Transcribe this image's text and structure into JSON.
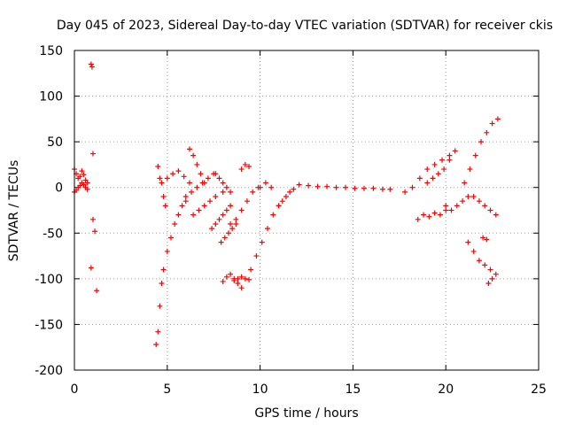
{
  "chart_data": {
    "type": "scatter",
    "title": "Day 045 of 2023, Sidereal Day-to-day VTEC variation (SDTVAR) for receiver ckis",
    "xlabel": "GPS time / hours",
    "ylabel": "SDTVAR / TECUs",
    "xlim": [
      0,
      25
    ],
    "ylim": [
      -200,
      150
    ],
    "xticks": [
      "0",
      "5",
      "10",
      "15",
      "20",
      "25"
    ],
    "yticks": [
      "150",
      "100",
      "50",
      "0",
      "-50",
      "-100",
      "-150",
      "-200"
    ],
    "grid": true,
    "marker": "+",
    "color": "#ff0000",
    "segments": [
      {
        "x": [
          0.0,
          0.1,
          0.2,
          0.3,
          0.4,
          0.5,
          0.6,
          0.7
        ],
        "y": [
          20,
          15,
          10,
          12,
          18,
          14,
          8,
          5
        ]
      },
      {
        "x": [
          0.0,
          0.1,
          0.2,
          0.3,
          0.4,
          0.5,
          0.6,
          0.7
        ],
        "y": [
          -5,
          -3,
          0,
          2,
          5,
          3,
          0,
          -2
        ]
      },
      {
        "x": [
          0.9,
          0.95,
          1.0
        ],
        "y": [
          135,
          132,
          37
        ]
      },
      {
        "x": [
          0.9,
          1.0,
          1.1,
          1.2
        ],
        "y": [
          -88,
          -35,
          -48,
          -113
        ]
      },
      {
        "x": [
          4.4,
          4.5,
          4.6,
          4.7,
          4.8
        ],
        "y": [
          -172,
          -158,
          -130,
          -105,
          -90
        ]
      },
      {
        "x": [
          4.5,
          4.6,
          4.7,
          4.8,
          4.9
        ],
        "y": [
          23,
          10,
          5,
          -10,
          -20
        ]
      },
      {
        "x": [
          5.0,
          5.2,
          5.4,
          5.6,
          5.8,
          6.0
        ],
        "y": [
          -70,
          -55,
          -40,
          -30,
          -20,
          -15
        ]
      },
      {
        "x": [
          5.0,
          5.3,
          5.6,
          5.9,
          6.2
        ],
        "y": [
          10,
          15,
          18,
          12,
          5
        ]
      },
      {
        "x": [
          6.0,
          6.3,
          6.6,
          6.9,
          7.2,
          7.5
        ],
        "y": [
          -10,
          -5,
          0,
          5,
          10,
          15
        ]
      },
      {
        "x": [
          6.2,
          6.4,
          6.6,
          6.8,
          7.0
        ],
        "y": [
          42,
          35,
          25,
          15,
          5
        ]
      },
      {
        "x": [
          6.4,
          6.7,
          7.0,
          7.3,
          7.6,
          8.0
        ],
        "y": [
          -30,
          -25,
          -20,
          -15,
          -10,
          -5
        ]
      },
      {
        "x": [
          7.4,
          7.6,
          7.8,
          8.0,
          8.2,
          8.4
        ],
        "y": [
          -45,
          -40,
          -35,
          -30,
          -25,
          -20
        ]
      },
      {
        "x": [
          7.6,
          7.8,
          8.0,
          8.2,
          8.4
        ],
        "y": [
          15,
          10,
          5,
          0,
          -5
        ]
      },
      {
        "x": [
          7.9,
          8.1,
          8.3,
          8.5,
          8.7
        ],
        "y": [
          -60,
          -55,
          -50,
          -45,
          -40
        ]
      },
      {
        "x": [
          8.0,
          8.2,
          8.4,
          8.6,
          8.8,
          9.0
        ],
        "y": [
          -103,
          -98,
          -95,
          -100,
          -105,
          -110
        ]
      },
      {
        "x": [
          8.6,
          8.8,
          9.0,
          9.2,
          9.4
        ],
        "y": [
          -102,
          -100,
          -98,
          -100,
          -101
        ]
      },
      {
        "x": [
          8.4,
          8.7,
          9.0,
          9.3,
          9.6,
          9.9
        ],
        "y": [
          -40,
          -35,
          -25,
          -15,
          -5,
          0
        ]
      },
      {
        "x": [
          9.0,
          9.2,
          9.4
        ],
        "y": [
          20,
          25,
          23
        ]
      },
      {
        "x": [
          9.5,
          9.8,
          10.1,
          10.4,
          10.7,
          11.0
        ],
        "y": [
          -90,
          -75,
          -60,
          -45,
          -30,
          -20
        ]
      },
      {
        "x": [
          10.0,
          10.3,
          10.6
        ],
        "y": [
          0,
          5,
          0
        ]
      },
      {
        "x": [
          11.0,
          11.2,
          11.4,
          11.6,
          11.8
        ],
        "y": [
          -20,
          -15,
          -10,
          -5,
          -2
        ]
      },
      {
        "x": [
          12.1,
          12.6,
          13.1,
          13.6,
          14.1,
          14.6,
          15.1,
          15.6,
          16.1,
          16.6,
          17.0
        ],
        "y": [
          3,
          2,
          1,
          1,
          0,
          0,
          -1,
          -1,
          -1,
          -2,
          -2
        ]
      },
      {
        "x": [
          17.8,
          18.2,
          18.6,
          19.0,
          19.4,
          19.8,
          20.2
        ],
        "y": [
          -5,
          0,
          10,
          20,
          25,
          30,
          35
        ]
      },
      {
        "x": [
          18.5,
          18.8,
          19.1,
          19.4,
          19.7,
          20.0
        ],
        "y": [
          -35,
          -30,
          -32,
          -28,
          -30,
          -25
        ]
      },
      {
        "x": [
          19.0,
          19.3,
          19.6,
          19.9,
          20.2,
          20.5
        ],
        "y": [
          5,
          10,
          15,
          20,
          30,
          40
        ]
      },
      {
        "x": [
          20.0,
          20.3,
          20.6,
          20.9,
          21.2
        ],
        "y": [
          -20,
          -25,
          -20,
          -15,
          -10
        ]
      },
      {
        "x": [
          21.0,
          21.3,
          21.6,
          21.9,
          22.2,
          22.5,
          22.8
        ],
        "y": [
          5,
          20,
          35,
          50,
          60,
          70,
          75
        ]
      },
      {
        "x": [
          21.2,
          21.5,
          21.8,
          22.1,
          22.4
        ],
        "y": [
          -60,
          -70,
          -80,
          -85,
          -90
        ]
      },
      {
        "x": [
          21.5,
          21.8,
          22.1,
          22.4,
          22.7
        ],
        "y": [
          -10,
          -15,
          -20,
          -25,
          -30
        ]
      },
      {
        "x": [
          22.0,
          22.2
        ],
        "y": [
          -55,
          -57
        ]
      },
      {
        "x": [
          22.3,
          22.5,
          22.7
        ],
        "y": [
          -105,
          -100,
          -95
        ]
      }
    ]
  }
}
